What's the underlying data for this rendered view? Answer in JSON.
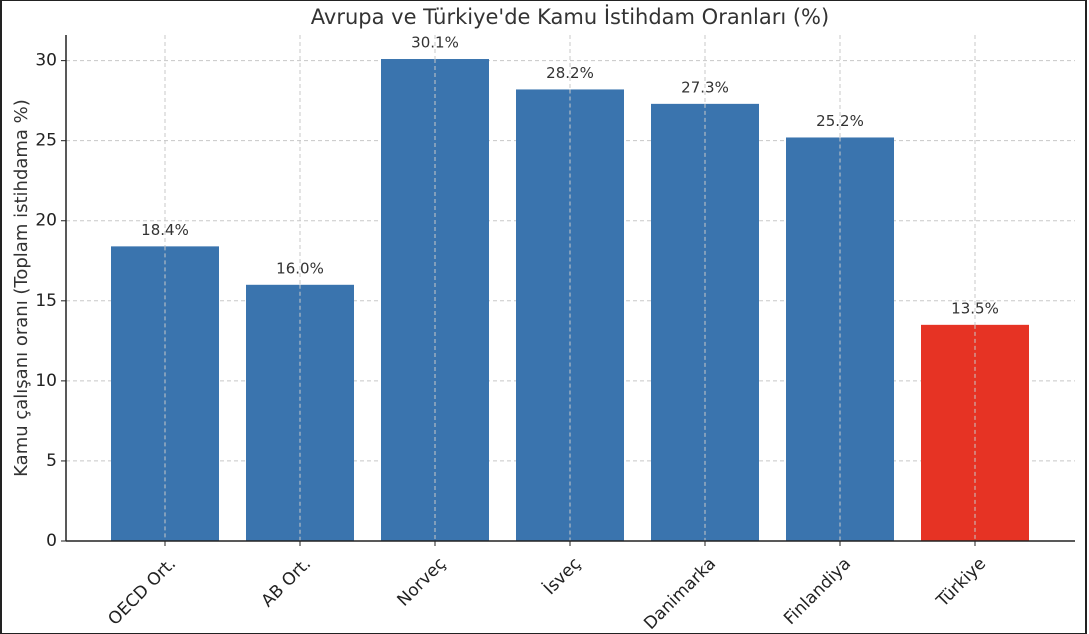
{
  "chart_data": {
    "type": "bar",
    "title": "Avrupa ve Türkiye'de Kamu İstihdam Oranları (%)",
    "ylabel": "Kamu çalışanı oranı (Toplam istihdama %)",
    "categories": [
      "OECD Ort.",
      "AB Ort.",
      "Norveç",
      "İsveç",
      "Danimarka",
      "Finlandiya",
      "Türkiye"
    ],
    "values": [
      18.4,
      16.0,
      30.1,
      28.2,
      27.3,
      25.2,
      13.5
    ],
    "value_labels": [
      "18.4%",
      "16.0%",
      "30.1%",
      "28.2%",
      "27.3%",
      "25.2%",
      "13.5%"
    ],
    "colors": [
      "#3a74ae",
      "#3a74ae",
      "#3a74ae",
      "#3a74ae",
      "#3a74ae",
      "#3a74ae",
      "#e63324"
    ],
    "ylim": [
      0,
      31.6
    ],
    "yticks": [
      0,
      5,
      10,
      15,
      20,
      25,
      30
    ],
    "grid": true
  }
}
